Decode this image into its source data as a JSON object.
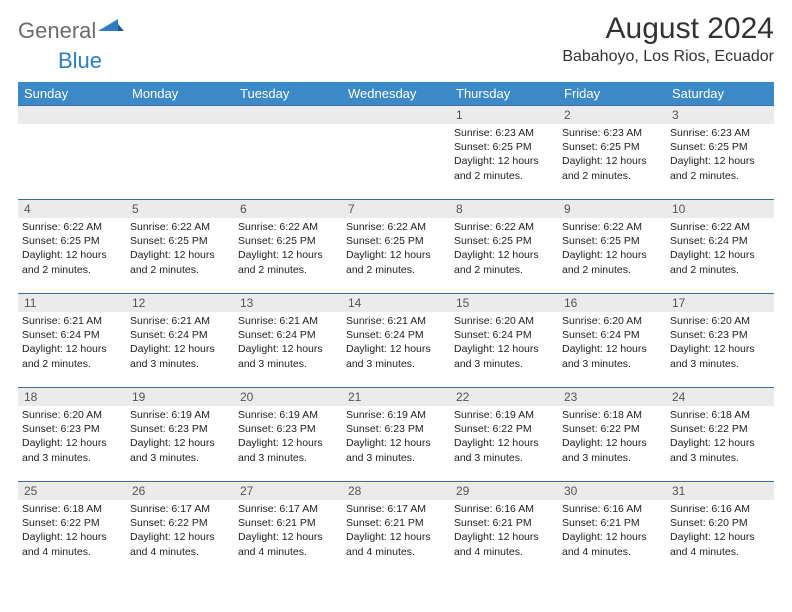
{
  "brand": {
    "general": "General",
    "blue": "Blue"
  },
  "title": "August 2024",
  "location": "Babahoyo, Los Rios, Ecuador",
  "colors": {
    "header_bg": "#3b89c7",
    "header_text": "#ffffff",
    "daynum_bg": "#ebebeb",
    "row_border": "#3b6ea0",
    "brand_grey": "#6c6c6c",
    "brand_blue": "#2f7dc0"
  },
  "weekdays": [
    "Sunday",
    "Monday",
    "Tuesday",
    "Wednesday",
    "Thursday",
    "Friday",
    "Saturday"
  ],
  "first_weekday_index": 4,
  "days": [
    {
      "n": 1,
      "sunrise": "6:23 AM",
      "sunset": "6:25 PM",
      "daylight": "12 hours and 2 minutes."
    },
    {
      "n": 2,
      "sunrise": "6:23 AM",
      "sunset": "6:25 PM",
      "daylight": "12 hours and 2 minutes."
    },
    {
      "n": 3,
      "sunrise": "6:23 AM",
      "sunset": "6:25 PM",
      "daylight": "12 hours and 2 minutes."
    },
    {
      "n": 4,
      "sunrise": "6:22 AM",
      "sunset": "6:25 PM",
      "daylight": "12 hours and 2 minutes."
    },
    {
      "n": 5,
      "sunrise": "6:22 AM",
      "sunset": "6:25 PM",
      "daylight": "12 hours and 2 minutes."
    },
    {
      "n": 6,
      "sunrise": "6:22 AM",
      "sunset": "6:25 PM",
      "daylight": "12 hours and 2 minutes."
    },
    {
      "n": 7,
      "sunrise": "6:22 AM",
      "sunset": "6:25 PM",
      "daylight": "12 hours and 2 minutes."
    },
    {
      "n": 8,
      "sunrise": "6:22 AM",
      "sunset": "6:25 PM",
      "daylight": "12 hours and 2 minutes."
    },
    {
      "n": 9,
      "sunrise": "6:22 AM",
      "sunset": "6:25 PM",
      "daylight": "12 hours and 2 minutes."
    },
    {
      "n": 10,
      "sunrise": "6:22 AM",
      "sunset": "6:24 PM",
      "daylight": "12 hours and 2 minutes."
    },
    {
      "n": 11,
      "sunrise": "6:21 AM",
      "sunset": "6:24 PM",
      "daylight": "12 hours and 2 minutes."
    },
    {
      "n": 12,
      "sunrise": "6:21 AM",
      "sunset": "6:24 PM",
      "daylight": "12 hours and 3 minutes."
    },
    {
      "n": 13,
      "sunrise": "6:21 AM",
      "sunset": "6:24 PM",
      "daylight": "12 hours and 3 minutes."
    },
    {
      "n": 14,
      "sunrise": "6:21 AM",
      "sunset": "6:24 PM",
      "daylight": "12 hours and 3 minutes."
    },
    {
      "n": 15,
      "sunrise": "6:20 AM",
      "sunset": "6:24 PM",
      "daylight": "12 hours and 3 minutes."
    },
    {
      "n": 16,
      "sunrise": "6:20 AM",
      "sunset": "6:24 PM",
      "daylight": "12 hours and 3 minutes."
    },
    {
      "n": 17,
      "sunrise": "6:20 AM",
      "sunset": "6:23 PM",
      "daylight": "12 hours and 3 minutes."
    },
    {
      "n": 18,
      "sunrise": "6:20 AM",
      "sunset": "6:23 PM",
      "daylight": "12 hours and 3 minutes."
    },
    {
      "n": 19,
      "sunrise": "6:19 AM",
      "sunset": "6:23 PM",
      "daylight": "12 hours and 3 minutes."
    },
    {
      "n": 20,
      "sunrise": "6:19 AM",
      "sunset": "6:23 PM",
      "daylight": "12 hours and 3 minutes."
    },
    {
      "n": 21,
      "sunrise": "6:19 AM",
      "sunset": "6:23 PM",
      "daylight": "12 hours and 3 minutes."
    },
    {
      "n": 22,
      "sunrise": "6:19 AM",
      "sunset": "6:22 PM",
      "daylight": "12 hours and 3 minutes."
    },
    {
      "n": 23,
      "sunrise": "6:18 AM",
      "sunset": "6:22 PM",
      "daylight": "12 hours and 3 minutes."
    },
    {
      "n": 24,
      "sunrise": "6:18 AM",
      "sunset": "6:22 PM",
      "daylight": "12 hours and 3 minutes."
    },
    {
      "n": 25,
      "sunrise": "6:18 AM",
      "sunset": "6:22 PM",
      "daylight": "12 hours and 4 minutes."
    },
    {
      "n": 26,
      "sunrise": "6:17 AM",
      "sunset": "6:22 PM",
      "daylight": "12 hours and 4 minutes."
    },
    {
      "n": 27,
      "sunrise": "6:17 AM",
      "sunset": "6:21 PM",
      "daylight": "12 hours and 4 minutes."
    },
    {
      "n": 28,
      "sunrise": "6:17 AM",
      "sunset": "6:21 PM",
      "daylight": "12 hours and 4 minutes."
    },
    {
      "n": 29,
      "sunrise": "6:16 AM",
      "sunset": "6:21 PM",
      "daylight": "12 hours and 4 minutes."
    },
    {
      "n": 30,
      "sunrise": "6:16 AM",
      "sunset": "6:21 PM",
      "daylight": "12 hours and 4 minutes."
    },
    {
      "n": 31,
      "sunrise": "6:16 AM",
      "sunset": "6:20 PM",
      "daylight": "12 hours and 4 minutes."
    }
  ],
  "labels": {
    "sunrise": "Sunrise:",
    "sunset": "Sunset:",
    "daylight": "Daylight:"
  }
}
